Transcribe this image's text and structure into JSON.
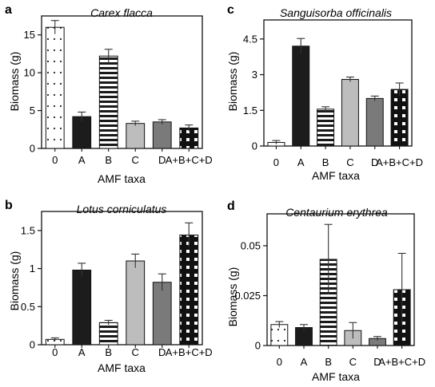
{
  "chart_data": [
    {
      "type": "bar",
      "panel": "a",
      "title": "Carex flacca",
      "xlabel": "AMF taxa",
      "ylabel": "Biomass (g)",
      "categories": [
        "0",
        "A",
        "B",
        "C",
        "D",
        "A+B+C+D"
      ],
      "values": [
        16.0,
        4.2,
        12.2,
        3.3,
        3.5,
        2.7
      ],
      "errors": [
        0.9,
        0.6,
        0.9,
        0.3,
        0.3,
        0.4
      ],
      "ylim": [
        0,
        17.5
      ],
      "yticks": [
        0,
        5,
        10,
        15
      ],
      "ytick_labels": [
        "0",
        "5",
        "10",
        "15"
      ]
    },
    {
      "type": "bar",
      "panel": "c",
      "title": "Sanguisorba officinalis",
      "xlabel": "AMF taxa",
      "ylabel": "Biomass (g)",
      "categories": [
        "0",
        "A",
        "B",
        "C",
        "D",
        "A+B+C+D"
      ],
      "values": [
        0.15,
        4.2,
        1.55,
        2.8,
        2.0,
        2.38
      ],
      "errors": [
        0.08,
        0.32,
        0.1,
        0.1,
        0.1,
        0.27
      ],
      "ylim": [
        0,
        5.3
      ],
      "yticks": [
        0,
        1.5,
        3,
        4.5
      ],
      "ytick_labels": [
        "0",
        "1.5",
        "3",
        "4.5"
      ]
    },
    {
      "type": "bar",
      "panel": "b",
      "title": "Lotus corniculatus",
      "xlabel": "AMF taxa",
      "ylabel": "Biomass (g)",
      "categories": [
        "0",
        "A",
        "B",
        "C",
        "D",
        "A+B+C+D"
      ],
      "values": [
        0.07,
        0.98,
        0.29,
        1.1,
        0.82,
        1.44
      ],
      "errors": [
        0.02,
        0.09,
        0.03,
        0.09,
        0.11,
        0.16
      ],
      "ylim": [
        0,
        1.75
      ],
      "yticks": [
        0,
        0.5,
        1,
        1.5
      ],
      "ytick_labels": [
        "0",
        "0.5",
        "1",
        "1.5"
      ]
    },
    {
      "type": "bar",
      "panel": "d",
      "title": "Centaurium erythrea",
      "xlabel": "AMF taxa",
      "ylabel": "Biomass (g)",
      "categories": [
        "0",
        "A",
        "B",
        "C",
        "D",
        "A+B+C+D"
      ],
      "values": [
        0.0105,
        0.009,
        0.0432,
        0.0075,
        0.0035,
        0.028
      ],
      "errors": [
        0.0015,
        0.0015,
        0.0175,
        0.004,
        0.001,
        0.0182
      ],
      "ylim": [
        0,
        0.066
      ],
      "yticks": [
        0,
        0.025,
        0.05
      ],
      "ytick_labels": [
        "0",
        "0.025",
        "0.05"
      ]
    }
  ],
  "style": {
    "bar_fills": [
      "dots",
      "#1c1c1c",
      "stripes",
      "#bdbdbd",
      "#7a7a7a",
      "checker"
    ],
    "axis_color": "#111111"
  }
}
